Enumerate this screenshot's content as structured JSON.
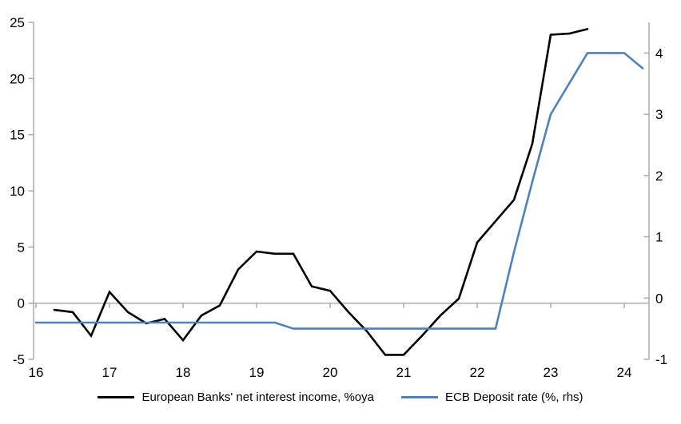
{
  "chart": {
    "background": "#ffffff",
    "axis_color": "#a6a6a6",
    "zero_line_color": "#a6a6a6",
    "text_color": "#000000"
  },
  "chart_data": {
    "type": "line",
    "title": "",
    "xlabel": "",
    "ylabel": "",
    "legend_position": "bottom",
    "grid": "zero-line-only",
    "x_axis": {
      "min": 16,
      "max": 24.35,
      "ticks": [
        "16",
        "17",
        "18",
        "19",
        "20",
        "21",
        "22",
        "23",
        "24"
      ],
      "tick_values": [
        16,
        17,
        18,
        19,
        20,
        21,
        22,
        23,
        24
      ]
    },
    "left_axis": {
      "min": -5,
      "max": 25,
      "ticks": [
        "25",
        "20",
        "15",
        "10",
        "5",
        "0",
        "-5"
      ],
      "tick_values": [
        25,
        20,
        15,
        10,
        5,
        0,
        -5
      ]
    },
    "right_axis": {
      "min": -1,
      "max": 4.5,
      "ticks": [
        "4",
        "3",
        "2",
        "1",
        "0",
        "-1"
      ],
      "tick_values": [
        4,
        3,
        2,
        1,
        0,
        -1
      ]
    },
    "series": [
      {
        "name": "European Banks' net interest income, %oya",
        "color": "#000000",
        "axis": "left",
        "x_start": 16.25,
        "x_step": 0.25,
        "values": [
          -0.6,
          -0.8,
          -2.9,
          1.0,
          -0.8,
          -1.8,
          -1.4,
          -3.3,
          -1.1,
          -0.2,
          3.0,
          4.6,
          4.4,
          4.4,
          1.5,
          1.1,
          -0.8,
          -2.5,
          -4.6,
          -4.6,
          -2.9,
          -1.1,
          0.4,
          5.4,
          7.3,
          9.2,
          14.2,
          23.9,
          24.0,
          24.4
        ]
      },
      {
        "name": "ECB Deposit rate (%, rhs)",
        "color": "#4f81bd",
        "axis": "right",
        "x_start": 16.0,
        "x_step": 0.25,
        "values": [
          -0.4,
          -0.4,
          -0.4,
          -0.4,
          -0.4,
          -0.4,
          -0.4,
          -0.4,
          -0.4,
          -0.4,
          -0.4,
          -0.4,
          -0.4,
          -0.4,
          -0.5,
          -0.5,
          -0.5,
          -0.5,
          -0.5,
          -0.5,
          -0.5,
          -0.5,
          -0.5,
          -0.5,
          -0.5,
          -0.5,
          0.75,
          1.9,
          3.0,
          3.5,
          4.0,
          4.0,
          4.0,
          3.75
        ]
      }
    ]
  }
}
